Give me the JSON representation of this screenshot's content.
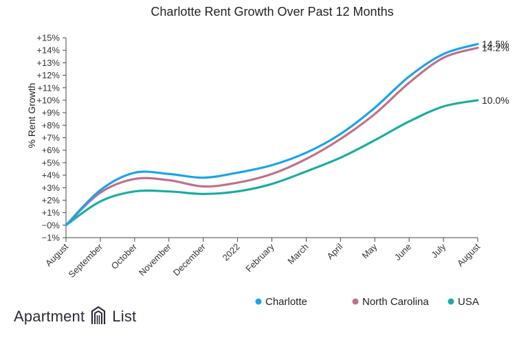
{
  "chart_data": {
    "type": "line",
    "title": "Charlotte Rent Growth Over Past 12 Months",
    "xlabel": "",
    "ylabel": "% Rent Growth",
    "categories": [
      "August",
      "September",
      "October",
      "November",
      "December",
      "2022",
      "February",
      "March",
      "April",
      "May",
      "June",
      "July",
      "August"
    ],
    "ylim": [
      -1,
      15
    ],
    "yticks": [
      "−1%",
      "−0%",
      "+1%",
      "+2%",
      "+3%",
      "+4%",
      "+5%",
      "+6%",
      "+7%",
      "+8%",
      "+9%",
      "+10%",
      "+11%",
      "+12%",
      "+13%",
      "+14%",
      "+15%"
    ],
    "legend_position": "bottom-right",
    "grid": false,
    "series": [
      {
        "name": "Charlotte",
        "color": "#1aa3ec",
        "end_label": "14.5%",
        "values": [
          0,
          2.8,
          4.2,
          4.1,
          3.8,
          4.2,
          4.8,
          5.8,
          7.3,
          9.4,
          11.9,
          13.7,
          14.5
        ]
      },
      {
        "name": "North Carolina",
        "color": "#c0708a",
        "end_label": "14.2%",
        "values": [
          0,
          2.6,
          3.7,
          3.6,
          3.1,
          3.4,
          4.1,
          5.3,
          6.9,
          8.9,
          11.4,
          13.4,
          14.2
        ]
      },
      {
        "name": "USA",
        "color": "#19ad9f",
        "end_label": "10.0%",
        "values": [
          0,
          1.9,
          2.7,
          2.7,
          2.5,
          2.7,
          3.3,
          4.3,
          5.4,
          6.8,
          8.3,
          9.5,
          10.0
        ]
      }
    ]
  },
  "branding": {
    "logo_left": "Apartment",
    "logo_right": "List"
  }
}
